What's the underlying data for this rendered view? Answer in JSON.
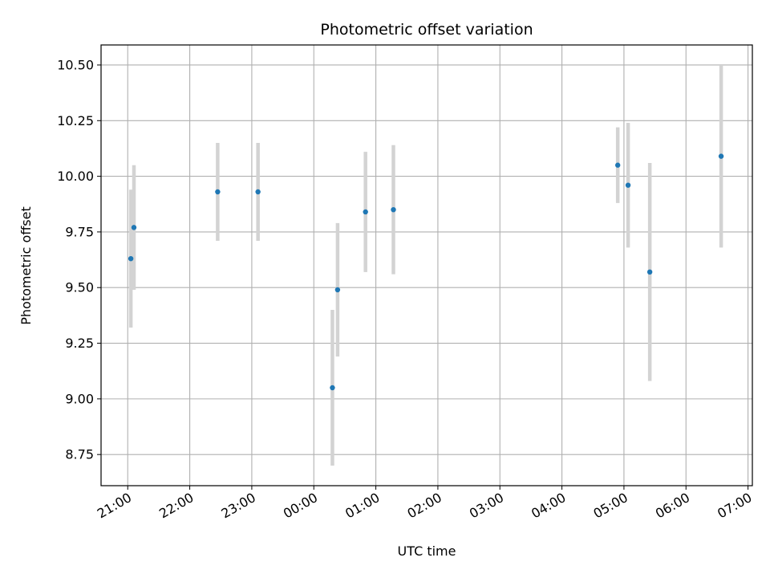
{
  "chart_data": {
    "type": "scatter",
    "title": "Photometric offset variation",
    "xlabel": "UTC time",
    "ylabel": "Photometric offset",
    "x_axis_kind": "time",
    "x_start_time": "21:00",
    "xlim": [
      -0.43,
      10.07
    ],
    "ylim": [
      8.61,
      10.59
    ],
    "xticks": [
      0,
      1,
      2,
      3,
      4,
      5,
      6,
      7,
      8,
      9,
      10
    ],
    "xtick_labels": [
      "21:00",
      "22:00",
      "23:00",
      "00:00",
      "01:00",
      "02:00",
      "03:00",
      "04:00",
      "05:00",
      "06:00",
      "07:00"
    ],
    "yticks": [
      8.75,
      9.0,
      9.25,
      9.5,
      9.75,
      10.0,
      10.25,
      10.5
    ],
    "ytick_labels": [
      "8.75",
      "9.00",
      "9.25",
      "9.50",
      "9.75",
      "10.00",
      "10.25",
      "10.50"
    ],
    "grid": true,
    "colors": {
      "points": "#1f77b4",
      "errorbars": "#d3d3d3",
      "grid": "#b0b0b0"
    },
    "series": [
      {
        "points": [
          {
            "x": "21:03",
            "y": 9.63,
            "err": 0.31
          },
          {
            "x": "21:06",
            "y": 9.77,
            "err": 0.28
          },
          {
            "x": "22:27",
            "y": 9.93,
            "err": 0.22
          },
          {
            "x": "23:06",
            "y": 9.93,
            "err": 0.22
          },
          {
            "x": "00:18",
            "y": 9.05,
            "err": 0.35
          },
          {
            "x": "00:23",
            "y": 9.49,
            "err": 0.3
          },
          {
            "x": "00:50",
            "y": 9.84,
            "err": 0.27
          },
          {
            "x": "01:17",
            "y": 9.85,
            "err": 0.29
          },
          {
            "x": "04:54",
            "y": 10.05,
            "err": 0.17
          },
          {
            "x": "05:04",
            "y": 9.96,
            "err": 0.28
          },
          {
            "x": "05:25",
            "y": 9.57,
            "err": 0.49
          },
          {
            "x": "06:34",
            "y": 10.09,
            "err": 0.41
          }
        ]
      }
    ]
  }
}
